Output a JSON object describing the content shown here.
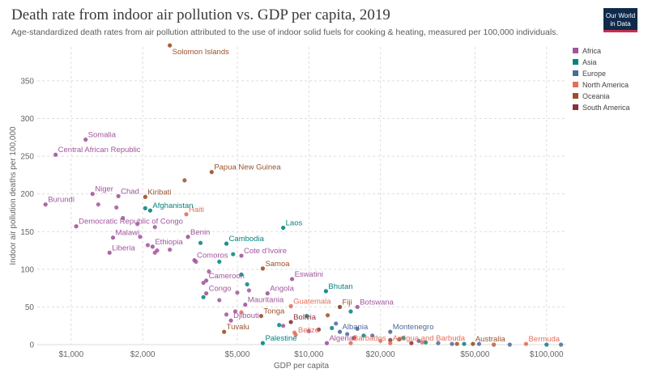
{
  "header": {
    "title": "Death rate from indoor air pollution vs. GDP per capita, 2019",
    "subtitle": "Age-standardized death rates from air pollution attributed to the use of indoor solid fuels for cooking & heating, measured per 100,000 individuals."
  },
  "logo": {
    "line1": "Our World",
    "line2": "in Data"
  },
  "colors": {
    "Africa": "#a2559c",
    "Asia": "#00847e",
    "Europe": "#4c6a9c",
    "North America": "#e56e5a",
    "Oceania": "#9a5129",
    "South America": "#883039",
    "grid": "#dddddd",
    "axis_text": "#666666"
  },
  "legend": [
    {
      "name": "Africa"
    },
    {
      "name": "Asia"
    },
    {
      "name": "Europe"
    },
    {
      "name": "North America"
    },
    {
      "name": "Oceania"
    },
    {
      "name": "South America"
    }
  ],
  "chart_data": {
    "type": "scatter",
    "xlabel": "GDP per capita",
    "ylabel": "Indoor air pollution deaths per 100,000",
    "xscale": "log",
    "xlim": [
      720,
      120000
    ],
    "ylim": [
      0,
      395
    ],
    "xticks": [
      1000,
      2000,
      5000,
      10000,
      20000,
      50000,
      100000
    ],
    "xtick_labels": [
      "$1,000",
      "$2,000",
      "$5,000",
      "$10,000",
      "$20,000",
      "$50,000",
      "$100,000"
    ],
    "yticks": [
      0,
      50,
      100,
      150,
      200,
      250,
      300,
      350
    ],
    "ytick_labels": [
      "0",
      "50",
      "100",
      "150",
      "200",
      "250",
      "300",
      "350"
    ],
    "grid": true,
    "legend_position": "right",
    "labeled_points": [
      {
        "label": "Solomon Islands",
        "region": "Oceania",
        "x": 2600,
        "y": 397
      },
      {
        "label": "Somalia",
        "region": "Africa",
        "x": 1150,
        "y": 272
      },
      {
        "label": "Central African Republic",
        "region": "Africa",
        "x": 860,
        "y": 252
      },
      {
        "label": "Papua New Guinea",
        "region": "Oceania",
        "x": 3900,
        "y": 229
      },
      {
        "label": "Niger",
        "region": "Africa",
        "x": 1230,
        "y": 200
      },
      {
        "label": "Chad",
        "region": "Africa",
        "x": 1580,
        "y": 197
      },
      {
        "label": "Kiribati",
        "region": "Oceania",
        "x": 2050,
        "y": 196
      },
      {
        "label": "Burundi",
        "region": "Africa",
        "x": 780,
        "y": 186
      },
      {
        "label": "Afghanistan",
        "region": "Asia",
        "x": 2150,
        "y": 178
      },
      {
        "label": "Haiti",
        "region": "North America",
        "x": 3050,
        "y": 173
      },
      {
        "label": "Democratic Republic of Congo",
        "region": "Africa",
        "x": 1050,
        "y": 157
      },
      {
        "label": "Laos",
        "region": "Asia",
        "x": 7800,
        "y": 155
      },
      {
        "label": "Malawi",
        "region": "Africa",
        "x": 1500,
        "y": 142
      },
      {
        "label": "Benin",
        "region": "Africa",
        "x": 3100,
        "y": 143
      },
      {
        "label": "Ethiopia",
        "region": "Africa",
        "x": 2200,
        "y": 130
      },
      {
        "label": "Cambodia",
        "region": "Asia",
        "x": 4500,
        "y": 134
      },
      {
        "label": "Liberia",
        "region": "Africa",
        "x": 1450,
        "y": 122
      },
      {
        "label": "Cote d'Ivoire",
        "region": "Africa",
        "x": 5200,
        "y": 118
      },
      {
        "label": "Comoros",
        "region": "Africa",
        "x": 3300,
        "y": 112
      },
      {
        "label": "Samoa",
        "region": "Oceania",
        "x": 6400,
        "y": 101
      },
      {
        "label": "Cameroon",
        "region": "Africa",
        "x": 3700,
        "y": 85
      },
      {
        "label": "Eswatini",
        "region": "Africa",
        "x": 8500,
        "y": 87
      },
      {
        "label": "Angola",
        "region": "Africa",
        "x": 6700,
        "y": 68
      },
      {
        "label": "Congo",
        "region": "Africa",
        "x": 3700,
        "y": 68
      },
      {
        "label": "Bhutan",
        "region": "Asia",
        "x": 11800,
        "y": 71
      },
      {
        "label": "Mauritania",
        "region": "Africa",
        "x": 5400,
        "y": 53
      },
      {
        "label": "Guatemala",
        "region": "North America",
        "x": 8400,
        "y": 51
      },
      {
        "label": "Fiji",
        "region": "Oceania",
        "x": 13500,
        "y": 50
      },
      {
        "label": "Botswana",
        "region": "Africa",
        "x": 16000,
        "y": 50
      },
      {
        "label": "Tonga",
        "region": "Oceania",
        "x": 6300,
        "y": 38
      },
      {
        "label": "Djibouti",
        "region": "Africa",
        "x": 4700,
        "y": 32
      },
      {
        "label": "Bolivia",
        "region": "South America",
        "x": 8400,
        "y": 30
      },
      {
        "label": "Tuvalu",
        "region": "Oceania",
        "x": 4400,
        "y": 17
      },
      {
        "label": "Albania",
        "region": "Europe",
        "x": 13500,
        "y": 17
      },
      {
        "label": "Montenegro",
        "region": "Europe",
        "x": 22000,
        "y": 17
      },
      {
        "label": "Belize",
        "region": "North America",
        "x": 8800,
        "y": 13
      },
      {
        "label": "Palestine",
        "region": "Asia",
        "x": 6400,
        "y": 2
      },
      {
        "label": "Algeria",
        "region": "Africa",
        "x": 11900,
        "y": 2
      },
      {
        "label": "Barbados",
        "region": "North America",
        "x": 15000,
        "y": 2
      },
      {
        "label": "Antigua and Barbuda",
        "region": "North America",
        "x": 22000,
        "y": 2
      },
      {
        "label": "Australia",
        "region": "Oceania",
        "x": 49000,
        "y": 1
      },
      {
        "label": "Bermuda",
        "region": "North America",
        "x": 82000,
        "y": 1
      }
    ],
    "points": [
      {
        "region": "Africa",
        "x": 1550,
        "y": 182
      },
      {
        "region": "Africa",
        "x": 1650,
        "y": 168
      },
      {
        "region": "Africa",
        "x": 1300,
        "y": 186
      },
      {
        "region": "Africa",
        "x": 1900,
        "y": 160
      },
      {
        "region": "Africa",
        "x": 2250,
        "y": 156
      },
      {
        "region": "Africa",
        "x": 1950,
        "y": 143
      },
      {
        "region": "Africa",
        "x": 2100,
        "y": 132
      },
      {
        "region": "Africa",
        "x": 2300,
        "y": 125
      },
      {
        "region": "Africa",
        "x": 2600,
        "y": 126
      },
      {
        "region": "Africa",
        "x": 2250,
        "y": 122
      },
      {
        "region": "Africa",
        "x": 3350,
        "y": 110
      },
      {
        "region": "Africa",
        "x": 3800,
        "y": 97
      },
      {
        "region": "Africa",
        "x": 3600,
        "y": 82
      },
      {
        "region": "Africa",
        "x": 4200,
        "y": 59
      },
      {
        "region": "Africa",
        "x": 5600,
        "y": 72
      },
      {
        "region": "Africa",
        "x": 5000,
        "y": 69
      },
      {
        "region": "Africa",
        "x": 4500,
        "y": 40
      },
      {
        "region": "Africa",
        "x": 4900,
        "y": 44
      },
      {
        "region": "Africa",
        "x": 7800,
        "y": 25
      },
      {
        "region": "Africa",
        "x": 10000,
        "y": 18
      },
      {
        "region": "Asia",
        "x": 2050,
        "y": 181
      },
      {
        "region": "Asia",
        "x": 3500,
        "y": 135
      },
      {
        "region": "Asia",
        "x": 4200,
        "y": 110
      },
      {
        "region": "Asia",
        "x": 4800,
        "y": 120
      },
      {
        "region": "Asia",
        "x": 5200,
        "y": 93
      },
      {
        "region": "Asia",
        "x": 5500,
        "y": 80
      },
      {
        "region": "Asia",
        "x": 3600,
        "y": 63
      },
      {
        "region": "Asia",
        "x": 13500,
        "y": 50
      },
      {
        "region": "Asia",
        "x": 15000,
        "y": 44
      },
      {
        "region": "Asia",
        "x": 7500,
        "y": 26
      },
      {
        "region": "Asia",
        "x": 9800,
        "y": 38
      },
      {
        "region": "Asia",
        "x": 12500,
        "y": 22
      },
      {
        "region": "Asia",
        "x": 17000,
        "y": 12
      },
      {
        "region": "Asia",
        "x": 25000,
        "y": 9
      },
      {
        "region": "Asia",
        "x": 31000,
        "y": 3
      },
      {
        "region": "Asia",
        "x": 45000,
        "y": 1
      },
      {
        "region": "Asia",
        "x": 60000,
        "y": 0
      },
      {
        "region": "Asia",
        "x": 100000,
        "y": 0
      },
      {
        "region": "Europe",
        "x": 13000,
        "y": 28
      },
      {
        "region": "Europe",
        "x": 16000,
        "y": 21
      },
      {
        "region": "Europe",
        "x": 14500,
        "y": 14
      },
      {
        "region": "Europe",
        "x": 18500,
        "y": 12
      },
      {
        "region": "Europe",
        "x": 29000,
        "y": 5
      },
      {
        "region": "Europe",
        "x": 35000,
        "y": 2
      },
      {
        "region": "Europe",
        "x": 40000,
        "y": 1
      },
      {
        "region": "Europe",
        "x": 52000,
        "y": 1
      },
      {
        "region": "Europe",
        "x": 70000,
        "y": 0
      },
      {
        "region": "Europe",
        "x": 115000,
        "y": 0
      },
      {
        "region": "North America",
        "x": 5200,
        "y": 43
      },
      {
        "region": "North America",
        "x": 8700,
        "y": 16
      },
      {
        "region": "North America",
        "x": 20000,
        "y": 5
      },
      {
        "region": "North America",
        "x": 30000,
        "y": 3
      },
      {
        "region": "North America",
        "x": 60000,
        "y": 0
      },
      {
        "region": "Oceania",
        "x": 3000,
        "y": 218
      },
      {
        "region": "Oceania",
        "x": 12000,
        "y": 39
      },
      {
        "region": "Oceania",
        "x": 24000,
        "y": 7
      },
      {
        "region": "Oceania",
        "x": 42000,
        "y": 1
      },
      {
        "region": "South America",
        "x": 11000,
        "y": 20
      },
      {
        "region": "South America",
        "x": 15500,
        "y": 9
      },
      {
        "region": "South America",
        "x": 22000,
        "y": 6
      },
      {
        "region": "South America",
        "x": 27000,
        "y": 2
      }
    ]
  }
}
